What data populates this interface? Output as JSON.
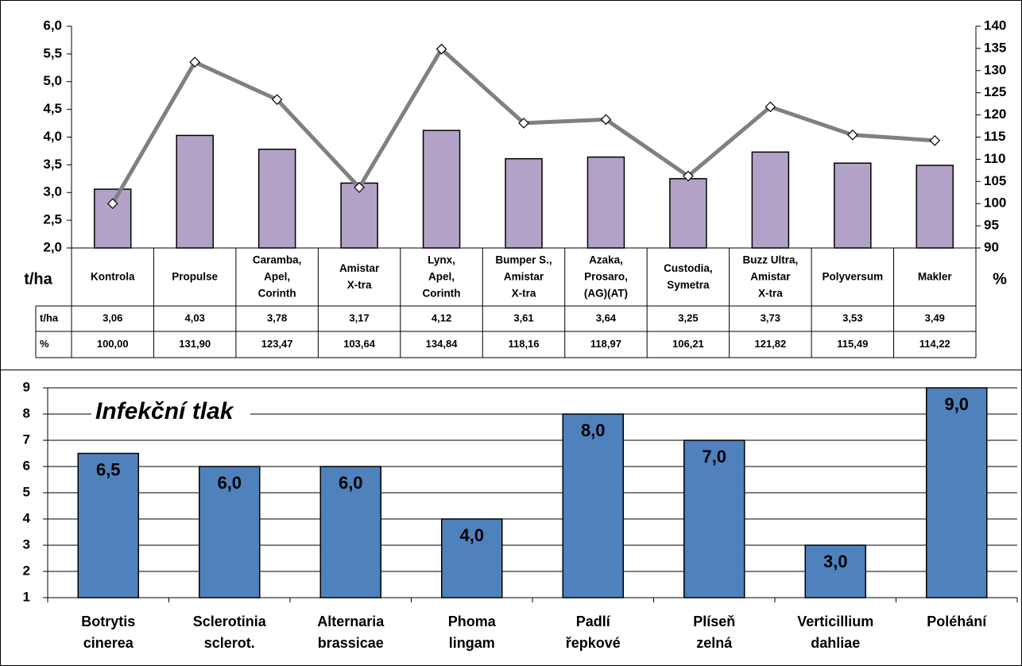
{
  "chart_data": [
    {
      "type": "bar-line",
      "categories": [
        [
          "Kontrola"
        ],
        [
          "Propulse"
        ],
        [
          "Caramba,",
          "Apel,",
          "Corinth"
        ],
        [
          "Amistar",
          "X-tra"
        ],
        [
          "Lynx,",
          "Apel,",
          "Corinth"
        ],
        [
          "Bumper S.,",
          "Amistar",
          "X-tra"
        ],
        [
          "Azaka,",
          "Prosaro,",
          "(AG)(AT)"
        ],
        [
          "Custodia,",
          "Symetra"
        ],
        [
          "Buzz Ultra,",
          "Amistar",
          "X-tra"
        ],
        [
          "Polyversum"
        ],
        [
          "Makler"
        ]
      ],
      "ylabel": "t/ha",
      "y2label": "%",
      "series": [
        {
          "name": "t/ha",
          "type": "bar",
          "color": "#b3a2c7",
          "values": [
            3.06,
            4.03,
            3.78,
            3.17,
            4.12,
            3.61,
            3.64,
            3.25,
            3.73,
            3.53,
            3.49
          ],
          "value_labels": [
            "3,06",
            "4,03",
            "3,78",
            "3,17",
            "4,12",
            "3,61",
            "3,64",
            "3,25",
            "3,73",
            "3,53",
            "3,49"
          ]
        },
        {
          "name": "%",
          "type": "line",
          "axis": "y2",
          "color": "#808080",
          "values": [
            100.0,
            131.9,
            123.47,
            103.64,
            134.84,
            118.16,
            118.97,
            106.21,
            121.82,
            115.49,
            114.22
          ],
          "value_labels": [
            "100,00",
            "131,90",
            "123,47",
            "103,64",
            "134,84",
            "118,16",
            "118,97",
            "106,21",
            "121,82",
            "115,49",
            "114,22"
          ]
        }
      ],
      "ylim": [
        2,
        6
      ],
      "yticks": [
        {
          "value": 2,
          "label": "2,0"
        },
        {
          "value": 2.5,
          "label": "2,5"
        },
        {
          "value": 3,
          "label": "3,0"
        },
        {
          "value": 3.5,
          "label": "3,5"
        },
        {
          "value": 4,
          "label": "4,0"
        },
        {
          "value": 4.5,
          "label": "4,5"
        },
        {
          "value": 5,
          "label": "5,0"
        },
        {
          "value": 5.5,
          "label": "5,5"
        },
        {
          "value": 6,
          "label": "6,0"
        }
      ],
      "y2lim": [
        90,
        140
      ],
      "y2ticks": [
        90,
        95,
        100,
        105,
        110,
        115,
        120,
        125,
        130,
        135,
        140
      ]
    },
    {
      "type": "bar",
      "title": "Infekční tlak",
      "categories": [
        [
          "Botrytis",
          "cinerea"
        ],
        [
          "Sclerotinia",
          "sclerot."
        ],
        [
          "Alternaria",
          "brassicae"
        ],
        [
          "Phoma",
          "lingam"
        ],
        [
          "Padlí",
          "řepkové"
        ],
        [
          "Plíseň",
          "zelná"
        ],
        [
          "Verticillium",
          "dahliae"
        ],
        [
          "Poléhání"
        ]
      ],
      "values": [
        6.5,
        6,
        6,
        4,
        8,
        7,
        3,
        9
      ],
      "value_labels": [
        "6,5",
        "6,0",
        "6,0",
        "4,0",
        "8,0",
        "7,0",
        "3,0",
        "9,0"
      ],
      "color": "#4f81bd",
      "ylim": [
        1,
        9
      ],
      "yticks": [
        1,
        2,
        3,
        4,
        5,
        6,
        7,
        8,
        9
      ],
      "grid": true
    }
  ]
}
